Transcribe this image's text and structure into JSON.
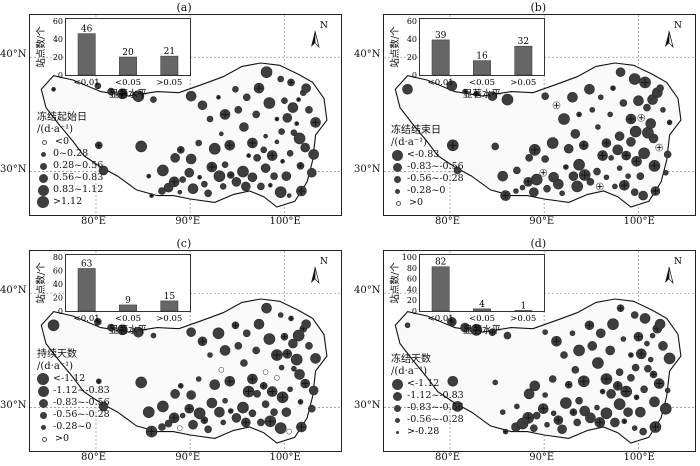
{
  "panels": [
    {
      "label": "(a)",
      "bar_counts": [
        46,
        20,
        21
      ],
      "ymax": 60,
      "yticks": [
        "0",
        "20",
        "40",
        "60"
      ],
      "legend_title": "冻结起始日",
      "legend_unit": "/(d·a⁻¹)",
      "legend_items": [
        "<0",
        "0~0.28",
        "0.28~0.56",
        "0.56~0.83",
        "0.83~1.12",
        ">1.12"
      ]
    },
    {
      "label": "(b)",
      "bar_counts": [
        39,
        16,
        32
      ],
      "ymax": 60,
      "yticks": [
        "0",
        "20",
        "40",
        "60"
      ],
      "legend_title": "冻结结束日",
      "legend_unit": "/(d·a⁻¹)",
      "legend_items": [
        "<-0.83",
        "-0.83~-0.56",
        "-0.56~-0.28",
        "-0.28~0",
        ">0"
      ]
    },
    {
      "label": "(c)",
      "bar_counts": [
        63,
        9,
        15
      ],
      "ymax": 80,
      "yticks": [
        "0",
        "20",
        "40",
        "60",
        "80"
      ],
      "legend_title": "持续天数",
      "legend_unit": "/(d·a⁻¹)",
      "legend_items": [
        "<-1.12",
        "-1.12~-0.83",
        "-0.83~-0.56",
        "-0.56~-0.28",
        "-0.28~0",
        ">0"
      ]
    },
    {
      "label": "(d)",
      "bar_counts": [
        82,
        4,
        1
      ],
      "ymax": 100,
      "yticks": [
        "0",
        "20",
        "40",
        "60",
        "80",
        "100"
      ],
      "legend_title": "冻结天数",
      "legend_unit": "/(d·a⁻¹)",
      "legend_items": [
        "<-1.12",
        "-1.12~-0.83",
        "-0.83~-0.56",
        "-0.56~-0.28",
        ">-0.28"
      ]
    }
  ],
  "common": {
    "bar_categories": [
      "<0.01",
      "<0.05",
      ">0.05"
    ],
    "bar_xlabel": "显著水平",
    "bar_ylabel": "站点数/个",
    "lon_ticks": [
      "80°E",
      "90°E",
      "100°E"
    ],
    "lat_ticks": [
      "40°N",
      "30°N"
    ],
    "north_label": "N"
  },
  "colors": {
    "symbol": "#3e3e3e",
    "bar": "#666666"
  }
}
